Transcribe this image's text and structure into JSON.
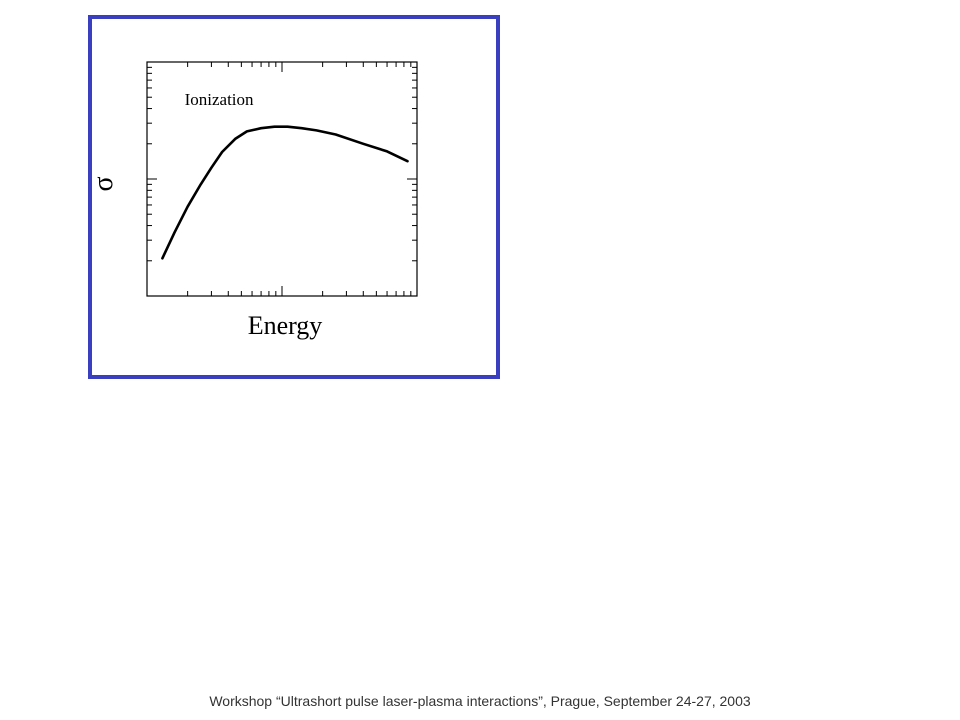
{
  "slide": {
    "footer": "Workshop “Ultrashort pulse laser-plasma interactions”, Prague, September 24-27, 2003",
    "frame_color": "#3a3fbf"
  },
  "chart_data": {
    "type": "line",
    "title": "",
    "xlabel": "Energy",
    "ylabel": "σ",
    "xscale": "log",
    "yscale": "log",
    "xlim": [
      1,
      100
    ],
    "ylim": [
      0.1,
      10
    ],
    "grid": false,
    "legend": "none",
    "annotations": [
      {
        "text": "Ionization",
        "x": 1.9,
        "y": 4.3
      }
    ],
    "series": [
      {
        "name": "",
        "color": "#000000",
        "x": [
          1.3,
          1.6,
          2.0,
          2.5,
          3.0,
          3.6,
          4.5,
          5.5,
          7.0,
          8.8,
          11,
          14,
          18,
          25,
          40,
          60,
          85
        ],
        "y": [
          0.21,
          0.35,
          0.58,
          0.9,
          1.25,
          1.7,
          2.2,
          2.55,
          2.72,
          2.8,
          2.8,
          2.72,
          2.6,
          2.4,
          2.0,
          1.72,
          1.42
        ]
      }
    ]
  }
}
